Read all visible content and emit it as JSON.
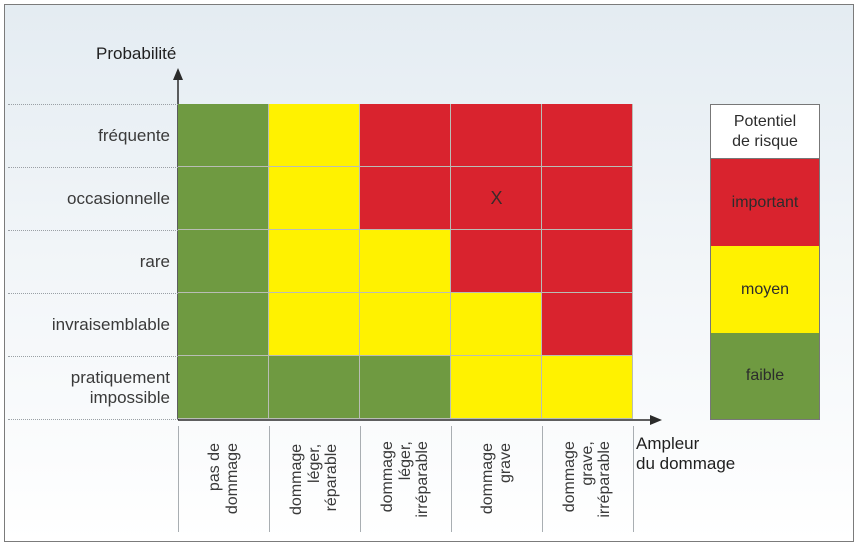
{
  "axes": {
    "y_title": "Probabilité",
    "x_title_line1": "Ampleur",
    "x_title_line2": "du dommage"
  },
  "rows": [
    {
      "label": "fréquente"
    },
    {
      "label": "occasionnelle"
    },
    {
      "label": "rare"
    },
    {
      "label": "invraisemblable"
    },
    {
      "label": "pratiquement\nimpossible"
    }
  ],
  "columns": [
    {
      "label": "pas de\ndommage"
    },
    {
      "label": "dommage\nléger,\nréparable"
    },
    {
      "label": "dommage\nléger,\nirréparable"
    },
    {
      "label": "dommage\ngrave"
    },
    {
      "label": "dommage\ngrave,\nirréparable"
    }
  ],
  "matrix": [
    [
      "faible",
      "moyen",
      "important",
      "important",
      "important"
    ],
    [
      "faible",
      "moyen",
      "important",
      "important",
      "important"
    ],
    [
      "faible",
      "moyen",
      "moyen",
      "important",
      "important"
    ],
    [
      "faible",
      "moyen",
      "moyen",
      "moyen",
      "important"
    ],
    [
      "faible",
      "faible",
      "faible",
      "moyen",
      "moyen"
    ]
  ],
  "marker": {
    "row": 1,
    "col": 3,
    "text": "X"
  },
  "legend": {
    "title": "Potentiel\nde risque",
    "items": [
      {
        "level": "important",
        "label": "important"
      },
      {
        "level": "moyen",
        "label": "moyen"
      },
      {
        "level": "faible",
        "label": "faible"
      }
    ]
  },
  "colors": {
    "important": "#d9232e",
    "moyen": "#fff200",
    "faible": "#6f9a41",
    "axis": "#2b2b2b"
  }
}
